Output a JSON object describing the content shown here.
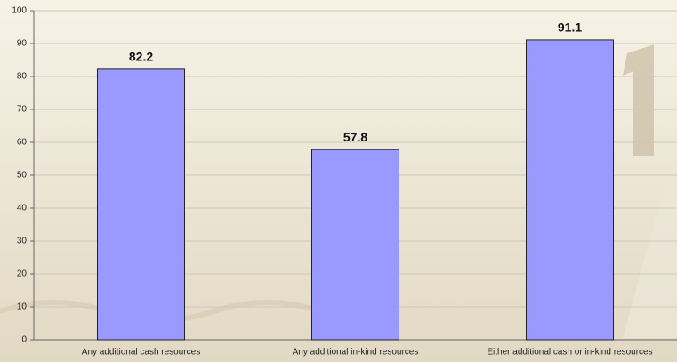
{
  "chart_data": {
    "type": "bar",
    "categories": [
      "Any additional cash resources",
      "Any additional in-kind resources",
      "Either additional cash or in-kind resources"
    ],
    "values": [
      82.2,
      57.8,
      91.1
    ],
    "color": "#9999ff",
    "ylim": [
      0,
      100
    ],
    "yticks": [
      0,
      10,
      20,
      30,
      40,
      50,
      60,
      70,
      80,
      90,
      100
    ],
    "grid": true
  }
}
